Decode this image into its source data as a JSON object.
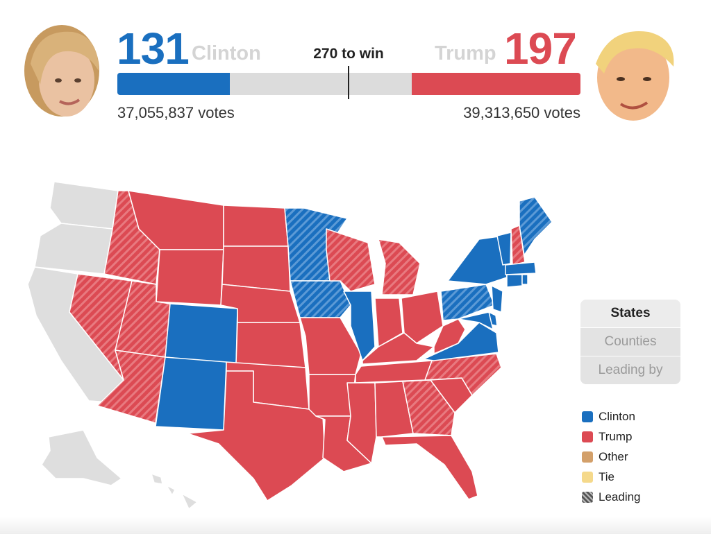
{
  "header": {
    "to_win_label": "270 to win",
    "clinton": {
      "name": "Clinton",
      "electoral_votes": "131",
      "popular_votes": "37,055,837 votes",
      "color": "#1a6fbf",
      "share": 0.2428
    },
    "trump": {
      "name": "Trump",
      "electoral_votes": "197",
      "popular_votes": "39,313,650 votes",
      "color": "#dc4a53",
      "share": 0.3648
    }
  },
  "view_toggle": {
    "options": [
      {
        "label": "States",
        "active": true
      },
      {
        "label": "Counties",
        "active": false
      },
      {
        "label": "Leading by",
        "active": false
      }
    ]
  },
  "legend": [
    {
      "label": "Clinton",
      "color": "#1a6fbf",
      "icon": "solid"
    },
    {
      "label": "Trump",
      "color": "#dc4a53",
      "icon": "solid"
    },
    {
      "label": "Other",
      "color": "#d3a06a",
      "icon": "solid"
    },
    {
      "label": "Tie",
      "color": "#f5d98b",
      "icon": "solid"
    },
    {
      "label": "Leading",
      "color": "#555555",
      "icon": "hatched"
    }
  ],
  "map": {
    "colors": {
      "clinton": "#1a6fbf",
      "trump": "#dc4a53",
      "none": "#dedede",
      "border": "#ffffff"
    }
  }
}
